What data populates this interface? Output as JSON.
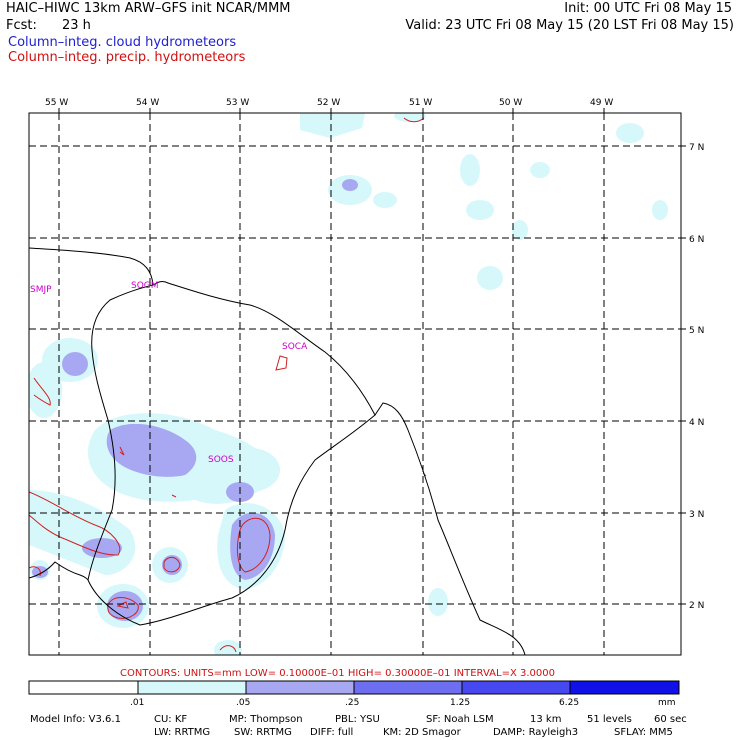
{
  "header": {
    "title": "HAIC–HIWC 13km ARW–GFS init   NCAR/MMM",
    "fcst_label": "Fcst:",
    "fcst_value": "23 h",
    "init": "Init: 00 UTC Fri 08 May 15",
    "valid": "Valid: 23 UTC Fri 08 May 15 (20 LST Fri 08 May 15)",
    "field1": "Column–integ. cloud hydrometeors",
    "field2": "Column–integ. precip. hydrometeors"
  },
  "map": {
    "lon_labels": [
      "55 W",
      "54 W",
      "53 W",
      "52 W",
      "51 W",
      "50 W",
      "49 W"
    ],
    "lat_labels": [
      "7 N",
      "6 N",
      "5 N",
      "4 N",
      "3 N",
      "2 N"
    ],
    "stations": [
      "SMJP",
      "SOGM",
      "SOCA",
      "SOOS"
    ],
    "colors": {
      "fill_light": "#d6f8fb",
      "fill_mid": "#a8a8f2",
      "fill_dark": "#6e6ef0",
      "contour": "#d02020",
      "coast": "#000000"
    }
  },
  "contour_info": "CONTOURS:  UNITS=mm  LOW= 0.10000E–01  HIGH= 0.30000E–01  INTERVAL=X  3.0000",
  "colorbar": {
    "ticks": [
      ".01",
      ".05",
      ".25",
      "1.25",
      "6.25"
    ],
    "unit": "mm",
    "colors": [
      "#ffffff",
      "#d6f8fb",
      "#a8a8f2",
      "#6e6ef0",
      "#4848f0",
      "#1010e8"
    ]
  },
  "model_info": {
    "line1": [
      "Model Info: V3.6.1",
      "CU: KF",
      "MP: Thompson",
      "PBL: YSU",
      "SF: Noah LSM",
      "13 km",
      "51 levels",
      "60 sec"
    ],
    "line2": [
      "LW: RRTMG",
      "SW: RRTMG",
      "DIFF: full",
      "KM: 2D Smagor",
      "DAMP: Rayleigh3",
      "SFLAY: MM5"
    ]
  }
}
